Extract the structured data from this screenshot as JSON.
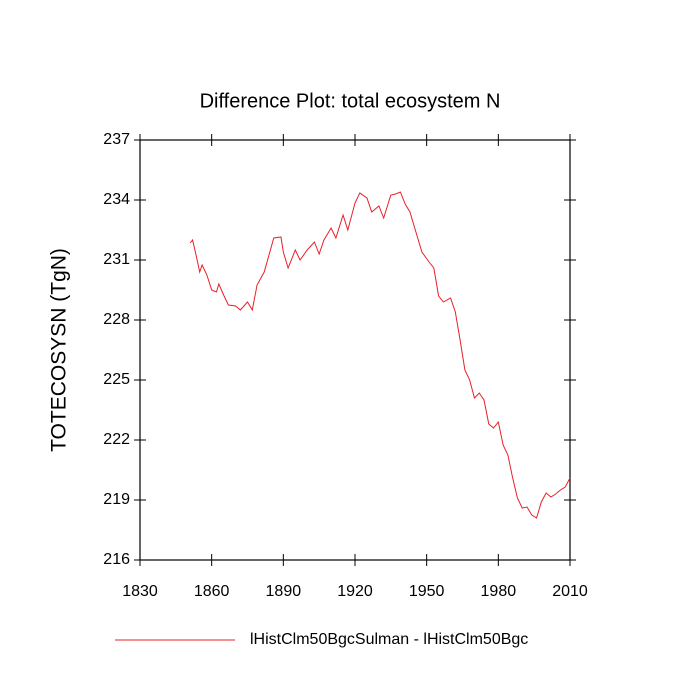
{
  "chart_data": {
    "type": "line",
    "title": "Difference Plot: total ecosystem N",
    "y_label": "TOTECOSYSN  (TgN)",
    "x": [
      1851,
      1852,
      1853,
      1855,
      1856,
      1858,
      1860,
      1862,
      1863,
      1865,
      1867,
      1870,
      1872,
      1875,
      1877,
      1879,
      1882,
      1884,
      1886,
      1889,
      1890,
      1892,
      1895,
      1897,
      1900,
      1903,
      1905,
      1907,
      1910,
      1912,
      1915,
      1917,
      1920,
      1922,
      1925,
      1927,
      1930,
      1932,
      1935,
      1937,
      1939,
      1941,
      1943,
      1945,
      1948,
      1951,
      1953,
      1955,
      1957,
      1960,
      1962,
      1964,
      1966,
      1968,
      1970,
      1972,
      1974,
      1976,
      1978,
      1980,
      1982,
      1984,
      1986,
      1988,
      1990,
      1992,
      1994,
      1996,
      1998,
      2000,
      2002,
      2004,
      2006,
      2008,
      2010
    ],
    "series": [
      {
        "name": "lHistClm50BgcSulman - lHistClm50Bgc",
        "color": "#e8202a",
        "values": [
          231.85,
          232.0,
          231.5,
          230.4,
          230.75,
          230.25,
          229.5,
          229.4,
          229.8,
          229.25,
          228.75,
          228.7,
          228.5,
          228.9,
          228.5,
          229.75,
          230.4,
          231.25,
          232.1,
          232.15,
          231.4,
          230.6,
          231.5,
          231.0,
          231.5,
          231.9,
          231.3,
          232.0,
          232.6,
          232.1,
          233.25,
          232.5,
          233.85,
          234.35,
          234.1,
          233.4,
          233.7,
          233.1,
          234.25,
          234.3,
          234.4,
          233.8,
          233.4,
          232.6,
          231.4,
          230.9,
          230.6,
          229.2,
          228.9,
          229.1,
          228.4,
          227.0,
          225.5,
          225.0,
          224.1,
          224.35,
          224.0,
          222.8,
          222.6,
          222.9,
          221.75,
          221.25,
          220.1,
          219.1,
          218.6,
          218.65,
          218.25,
          218.1,
          218.9,
          219.35,
          219.15,
          219.3,
          219.5,
          219.65,
          220.1
        ]
      }
    ],
    "xlim": [
      1830,
      2010
    ],
    "xticks": [
      1830,
      1860,
      1890,
      1920,
      1950,
      1980,
      2010
    ],
    "ylim": [
      216,
      237
    ],
    "yticks": [
      216,
      219,
      222,
      225,
      228,
      231,
      234,
      237
    ],
    "legend": "bottom"
  }
}
